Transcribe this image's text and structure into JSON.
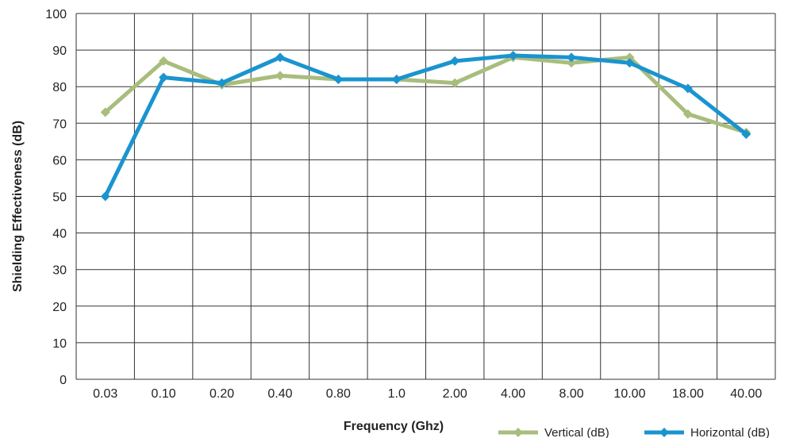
{
  "chart_data": {
    "type": "line",
    "title": "",
    "xlabel": "Frequency (Ghz)",
    "ylabel": "Shielding Effectiveness (dB)",
    "categories": [
      "0.03",
      "0.10",
      "0.20",
      "0.40",
      "0.80",
      "1.0",
      "2.00",
      "4.00",
      "8.00",
      "10.00",
      "18.00",
      "40.00"
    ],
    "ylim": [
      0,
      100
    ],
    "yticks": [
      0,
      10,
      20,
      30,
      40,
      50,
      60,
      70,
      80,
      90,
      100
    ],
    "grid": true,
    "legend_position": "bottom-right",
    "series": [
      {
        "name": "Vertical (dB)",
        "color": "#a9bd7c",
        "marker": "diamond",
        "values": [
          73,
          87,
          80.5,
          83,
          82,
          82,
          81,
          88,
          86.5,
          88,
          72.5,
          67.5
        ]
      },
      {
        "name": "Horizontal (dB)",
        "color": "#1a94cf",
        "marker": "diamond",
        "values": [
          50,
          82.5,
          81,
          88,
          82,
          82,
          87,
          88.5,
          88,
          86.5,
          79.5,
          67
        ]
      }
    ]
  }
}
